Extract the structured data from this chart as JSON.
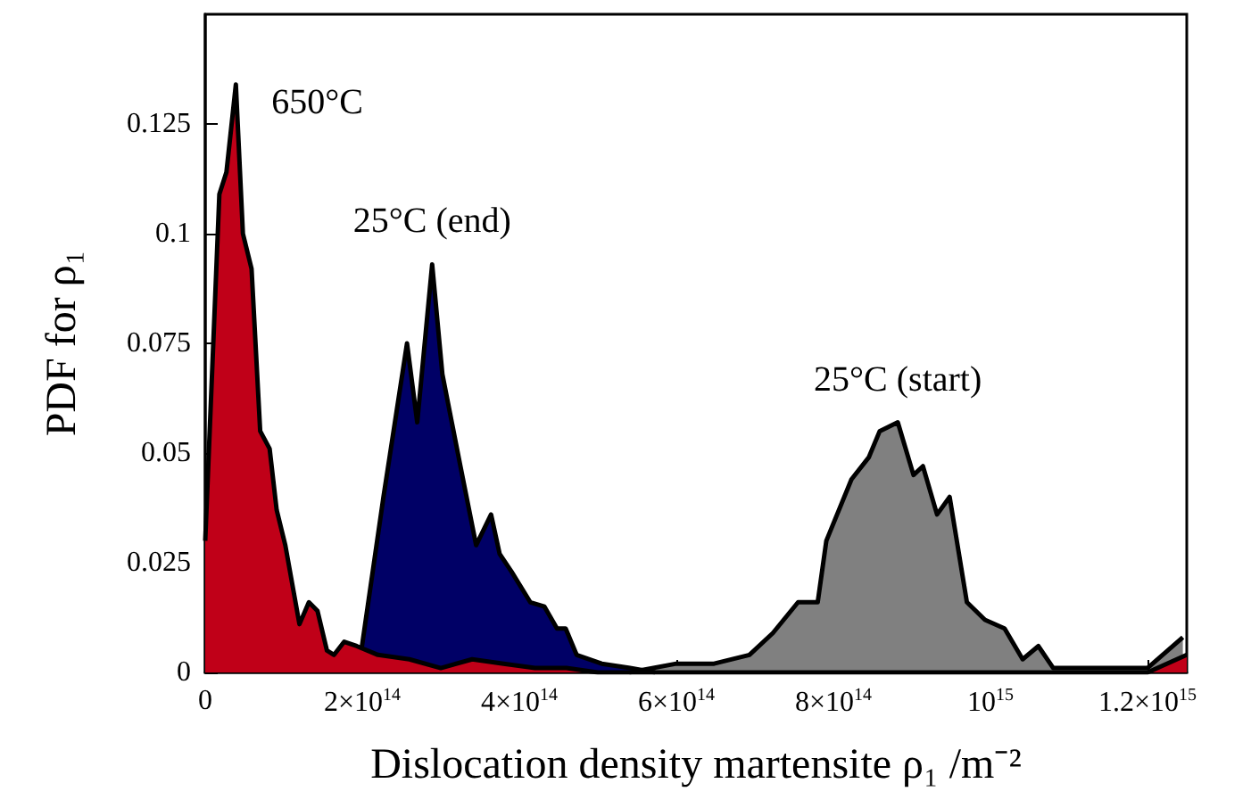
{
  "chart_data": {
    "type": "area",
    "xlabel": "Dislocation density martensite ρ₁ /m⁻²",
    "ylabel": "PDF for ρ₁",
    "xlim": [
      0,
      1250000000000000.0
    ],
    "ylim": [
      0,
      0.15
    ],
    "xticks": [
      0,
      {
        "value": 200000000000000.0,
        "label": "2×10$^{14}$"
      },
      {
        "value": 400000000000000.0,
        "label": "4×10$^{14}$"
      },
      {
        "value": 600000000000000.0,
        "label": "6×10$^{14}$"
      },
      {
        "value": 800000000000000.0,
        "label": "8×10$^{14}$"
      },
      {
        "value": 1000000000000000.0,
        "label": "10$^{15}$"
      },
      {
        "value": 1200000000000000.0,
        "label": "1.2×10$^{15}$"
      }
    ],
    "yticks": [
      0,
      0.025,
      0.05,
      0.075,
      0.1,
      0.125
    ],
    "grid": false,
    "legend": false,
    "marker": "none",
    "line_style": "solid",
    "series": [
      {
        "name": "650°C",
        "color": "#c00018",
        "x": [
          0,
          18000000000000.0,
          27000000000000.0,
          39000000000000.0,
          48000000000000.0,
          59000000000000.0,
          70000000000000.0,
          82000000000000.0,
          91000000000000.0,
          102000000000000.0,
          120000000000000.0,
          132000000000000.0,
          143000000000000.0,
          155000000000000.0,
          164000000000000.0,
          177000000000000.0,
          193000000000000.0,
          220000000000000.0,
          260000000000000.0,
          300000000000000.0,
          340000000000000.0,
          380000000000000.0,
          420000000000000.0,
          460000000000000.0,
          500000000000000.0,
          1200000000000000.0,
          1250000000000000.0
        ],
        "values": [
          0.03,
          0.109,
          0.114,
          0.134,
          0.1,
          0.092,
          0.055,
          0.051,
          0.037,
          0.029,
          0.011,
          0.016,
          0.014,
          0.005,
          0.004,
          0.007,
          0.006,
          0.004,
          0.003,
          0.001,
          0.003,
          0.002,
          0.001,
          0.001,
          0,
          0,
          0.004
        ]
      },
      {
        "name": "25°C (end)",
        "color": "#000066",
        "x": [
          198000000000000.0,
          227000000000000.0,
          257000000000000.0,
          270000000000000.0,
          289000000000000.0,
          302000000000000.0,
          325000000000000.0,
          345000000000000.0,
          364000000000000.0,
          375000000000000.0,
          390000000000000.0,
          414000000000000.0,
          432000000000000.0,
          448000000000000.0,
          459000000000000.0,
          473000000000000.0,
          505000000000000.0,
          541000000000000.0,
          573000000000000.0
        ],
        "values": [
          0.004,
          0.04,
          0.075,
          0.057,
          0.093,
          0.068,
          0.047,
          0.029,
          0.036,
          0.027,
          0.023,
          0.016,
          0.015,
          0.01,
          0.01,
          0.004,
          0.002,
          0.001,
          0
        ]
      },
      {
        "name": "25°C (start)",
        "color": "#808080",
        "x": [
          540000000000000.0,
          600000000000000.0,
          648000000000000.0,
          693000000000000.0,
          723000000000000.0,
          755000000000000.0,
          780000000000000.0,
          791000000000000.0,
          823000000000000.0,
          845000000000000.0,
          859000000000000.0,
          882000000000000.0,
          902000000000000.0,
          914000000000000.0,
          932000000000000.0,
          948000000000000.0,
          970000000000000.0,
          993000000000000.0,
          1018000000000000.0,
          1041000000000000.0,
          1061000000000000.0,
          1080000000000000.0,
          1200000000000000.0,
          1245000000000000.0
        ],
        "values": [
          0,
          0.002,
          0.002,
          0.004,
          0.009,
          0.016,
          0.016,
          0.03,
          0.044,
          0.049,
          0.055,
          0.057,
          0.045,
          0.047,
          0.036,
          0.04,
          0.016,
          0.012,
          0.01,
          0.003,
          0.006,
          0.001,
          0.001,
          0.008
        ]
      }
    ]
  }
}
